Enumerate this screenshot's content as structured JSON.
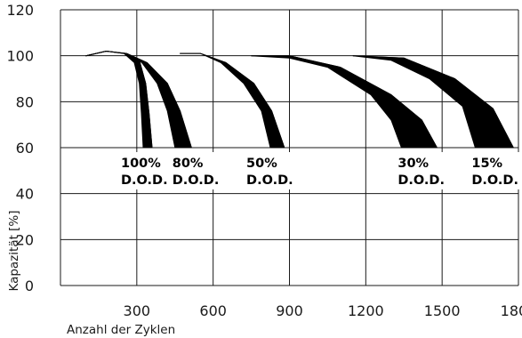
{
  "chart_data": {
    "type": "area",
    "xlabel": "Anzahl der Zyklen",
    "ylabel": "Kapazität [%]",
    "xlim": [
      0,
      1800
    ],
    "ylim": [
      0,
      120
    ],
    "xticks": [
      300,
      600,
      900,
      1200,
      1500,
      1800
    ],
    "yticks": [
      0,
      20,
      40,
      60,
      80,
      100,
      120
    ],
    "grid": true,
    "series": [
      {
        "name": "100% D.O.D.",
        "line1": "100%",
        "line2": "D.O.D.",
        "upper": [
          [
            100,
            100
          ],
          [
            180,
            102
          ],
          [
            250,
            101
          ],
          [
            310,
            98
          ],
          [
            335,
            88
          ],
          [
            348,
            75
          ],
          [
            360,
            60
          ]
        ],
        "lower": [
          [
            100,
            100
          ],
          [
            180,
            102
          ],
          [
            250,
            101
          ],
          [
            290,
            97
          ],
          [
            310,
            88
          ],
          [
            318,
            75
          ],
          [
            325,
            60
          ]
        ]
      },
      {
        "name": "80% D.O.D.",
        "line1": "80%",
        "line2": "D.O.D.",
        "upper": [
          [
            100,
            100
          ],
          [
            180,
            102
          ],
          [
            260,
            101
          ],
          [
            340,
            97
          ],
          [
            420,
            88
          ],
          [
            470,
            76
          ],
          [
            515,
            60
          ]
        ],
        "lower": [
          [
            100,
            100
          ],
          [
            180,
            102
          ],
          [
            260,
            101
          ],
          [
            320,
            97
          ],
          [
            380,
            88
          ],
          [
            420,
            76
          ],
          [
            450,
            60
          ]
        ]
      },
      {
        "name": "50% D.O.D.",
        "line1": "50%",
        "line2": "D.O.D.",
        "upper": [
          [
            470,
            101
          ],
          [
            550,
            101
          ],
          [
            650,
            97
          ],
          [
            760,
            88
          ],
          [
            830,
            76
          ],
          [
            880,
            60
          ]
        ],
        "lower": [
          [
            470,
            101
          ],
          [
            550,
            101
          ],
          [
            630,
            97
          ],
          [
            720,
            88
          ],
          [
            790,
            76
          ],
          [
            825,
            60
          ]
        ]
      },
      {
        "name": "30% D.O.D.",
        "line1": "30%",
        "line2": "D.O.D.",
        "upper": [
          [
            750,
            100
          ],
          [
            900,
            100
          ],
          [
            1100,
            95
          ],
          [
            1300,
            83
          ],
          [
            1420,
            72
          ],
          [
            1480,
            60
          ]
        ],
        "lower": [
          [
            750,
            100
          ],
          [
            900,
            99
          ],
          [
            1050,
            95
          ],
          [
            1220,
            83
          ],
          [
            1300,
            72
          ],
          [
            1340,
            60
          ]
        ]
      },
      {
        "name": "15% D.O.D.",
        "line1": "15%",
        "line2": "D.O.D.",
        "upper": [
          [
            1150,
            100
          ],
          [
            1350,
            99
          ],
          [
            1550,
            90
          ],
          [
            1700,
            77
          ],
          [
            1780,
            60
          ]
        ],
        "lower": [
          [
            1150,
            100
          ],
          [
            1300,
            98
          ],
          [
            1450,
            90
          ],
          [
            1580,
            78
          ],
          [
            1630,
            60
          ]
        ]
      }
    ]
  }
}
